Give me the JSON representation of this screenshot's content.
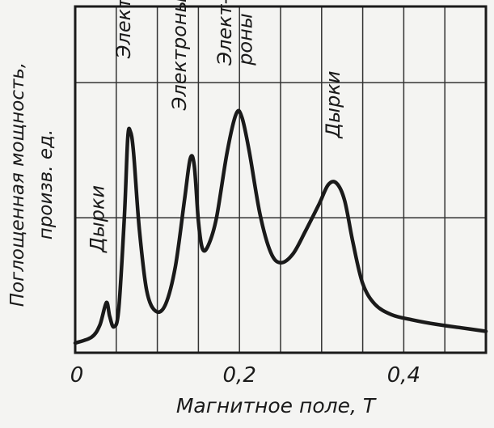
{
  "chart_data": {
    "type": "line",
    "xlabel": "Магнитное поле, Т",
    "ylabel_line1": "Поглощенная мощность,",
    "ylabel_line2": "произв. ед.",
    "x_ticks": [
      {
        "value": 0,
        "label": "0"
      },
      {
        "value": 0.2,
        "label": "0,2"
      },
      {
        "value": 0.4,
        "label": "0,4"
      }
    ],
    "xlim": [
      0,
      0.5
    ],
    "ylim": [
      0,
      10
    ],
    "grid": true,
    "grid_x": [
      0.05,
      0.1,
      0.15,
      0.2,
      0.25,
      0.3,
      0.35,
      0.4,
      0.45
    ],
    "grid_y": [
      3.9,
      7.8
    ],
    "series": [
      {
        "points": [
          [
            0.0,
            0.28
          ],
          [
            0.02,
            0.45
          ],
          [
            0.03,
            0.8
          ],
          [
            0.038,
            1.45
          ],
          [
            0.042,
            1.05
          ],
          [
            0.047,
            0.75
          ],
          [
            0.053,
            1.25
          ],
          [
            0.06,
            4.0
          ],
          [
            0.064,
            6.2
          ],
          [
            0.067,
            6.4
          ],
          [
            0.071,
            5.8
          ],
          [
            0.078,
            3.6
          ],
          [
            0.087,
            1.8
          ],
          [
            0.098,
            1.2
          ],
          [
            0.11,
            1.4
          ],
          [
            0.122,
            2.5
          ],
          [
            0.133,
            4.4
          ],
          [
            0.14,
            5.6
          ],
          [
            0.145,
            5.4
          ],
          [
            0.15,
            3.8
          ],
          [
            0.155,
            3.0
          ],
          [
            0.162,
            3.1
          ],
          [
            0.172,
            3.9
          ],
          [
            0.185,
            5.8
          ],
          [
            0.196,
            6.9
          ],
          [
            0.203,
            6.8
          ],
          [
            0.212,
            5.8
          ],
          [
            0.225,
            4.0
          ],
          [
            0.238,
            2.9
          ],
          [
            0.25,
            2.6
          ],
          [
            0.265,
            2.85
          ],
          [
            0.28,
            3.5
          ],
          [
            0.297,
            4.3
          ],
          [
            0.308,
            4.85
          ],
          [
            0.318,
            4.9
          ],
          [
            0.328,
            4.4
          ],
          [
            0.338,
            3.2
          ],
          [
            0.35,
            2.0
          ],
          [
            0.365,
            1.4
          ],
          [
            0.385,
            1.1
          ],
          [
            0.41,
            0.95
          ],
          [
            0.44,
            0.82
          ],
          [
            0.47,
            0.72
          ],
          [
            0.5,
            0.62
          ]
        ]
      }
    ],
    "annotations": [
      {
        "text": "Дырки",
        "x": 0.035,
        "y": 2.9
      },
      {
        "text": "Электроны",
        "x": 0.067,
        "y": 8.5
      },
      {
        "text": "Электроны",
        "x": 0.135,
        "y": 7.0
      },
      {
        "text": "Элект-",
        "x": 0.19,
        "y": 8.3
      },
      {
        "text": "роны",
        "x": 0.215,
        "y": 8.3
      },
      {
        "text": "Дырки",
        "x": 0.322,
        "y": 6.2
      }
    ]
  }
}
